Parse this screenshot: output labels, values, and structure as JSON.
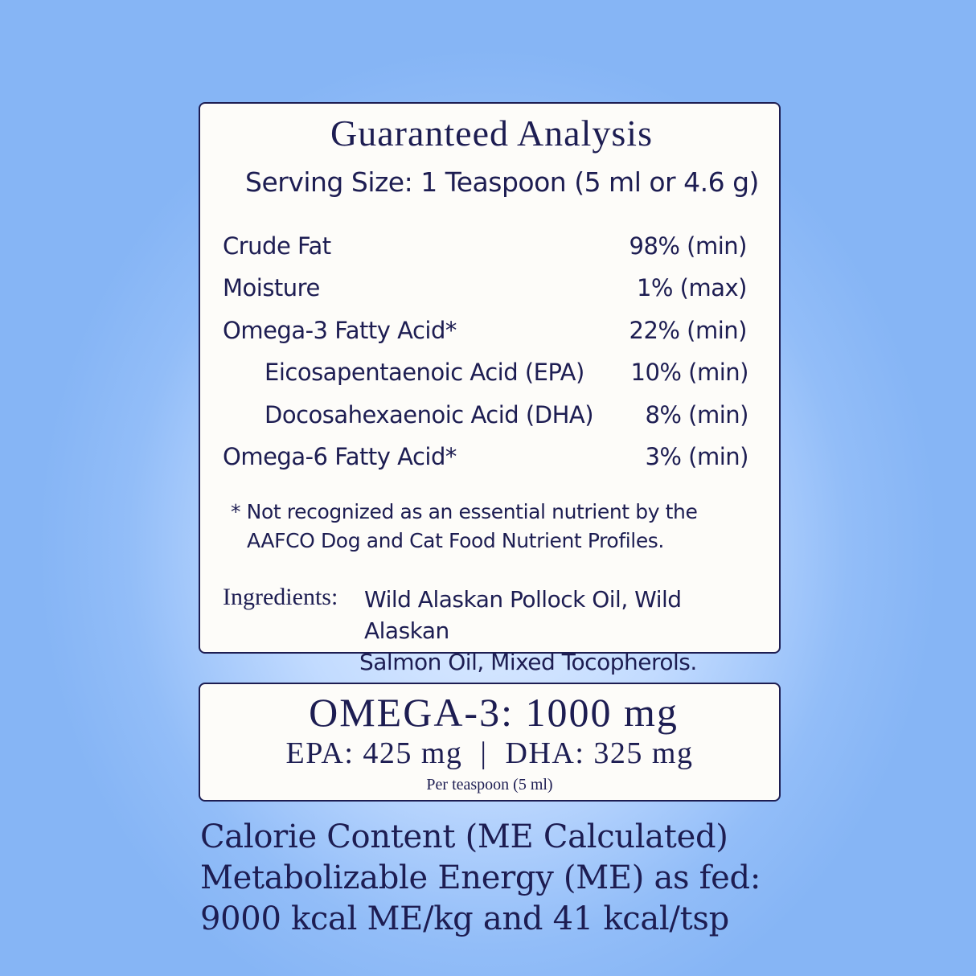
{
  "analysis": {
    "title": "Guaranteed Analysis",
    "serving_size": "Serving Size: 1 Teaspoon (5 ml or 4.6 g)",
    "rows": [
      {
        "label": "Crude Fat",
        "value": "98% (min)",
        "indent": false
      },
      {
        "label": "Moisture",
        "value": "1% (max)",
        "indent": false
      },
      {
        "label": "Omega-3 Fatty Acid*",
        "value": "22% (min)",
        "indent": false
      },
      {
        "label": "Eicosapentaenoic Acid (EPA)",
        "value": "10% (min)",
        "indent": true
      },
      {
        "label": "Docosahexaenoic Acid (DHA)",
        "value": "8% (min)",
        "indent": true
      },
      {
        "label": "Omega-6 Fatty Acid*",
        "value": "3% (min)",
        "indent": false
      }
    ],
    "footnote_line1": "* Not recognized as an essential nutrient by the",
    "footnote_line2": "AAFCO Dog and Cat Food Nutrient Profiles.",
    "ingredients_label": "Ingredients:",
    "ingredients_line1": "Wild Alaskan Pollock Oil, Wild Alaskan",
    "ingredients_line2": "Salmon Oil, Mixed Tocopherols."
  },
  "omega_box": {
    "headline": "OMEGA-3: 1000 mg",
    "breakdown": "EPA: 425 mg  |  DHA: 325 mg",
    "per": "Per teaspoon (5 ml)"
  },
  "calorie": {
    "line1": "Calorie Content (ME Calculated)",
    "line2": "Metabolizable Energy (ME) as fed:",
    "line3": "9000 kcal ME/kg and 41 kcal/tsp"
  },
  "colors": {
    "text": "#1d1d52",
    "background": "#92bdf8",
    "panel": "#fdfcf9"
  }
}
